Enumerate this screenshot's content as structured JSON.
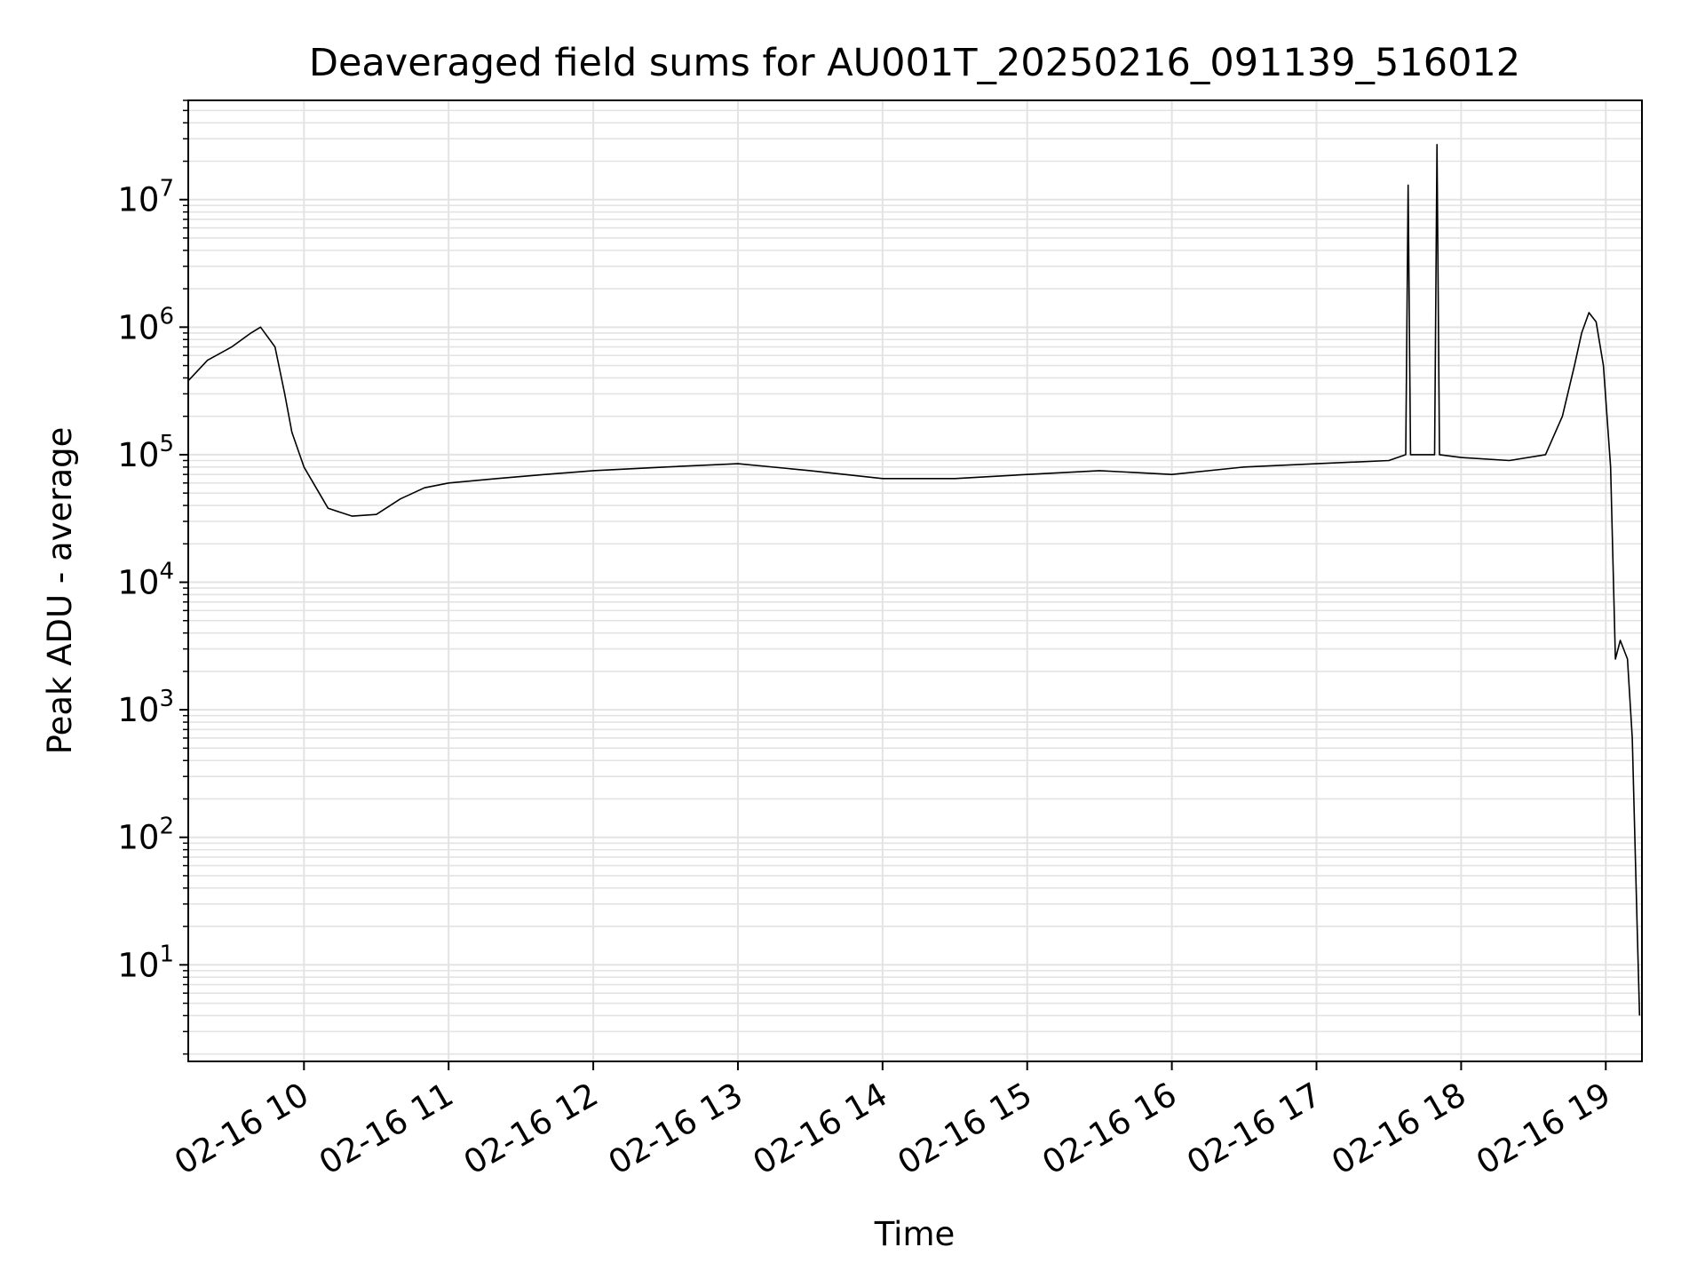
{
  "chart_data": {
    "type": "line",
    "title": "Deaveraged field sums for AU001T_20250216_091139_516012",
    "xlabel": "Time",
    "ylabel": "Peak ADU - average",
    "yscale": "log",
    "ylim": [
      1.75,
      60000000
    ],
    "xlim": [
      "2025-02-16 09:12",
      "2025-02-16 19:15"
    ],
    "grid": true,
    "line_color": "#000000",
    "grid_color": "#e3e3e3",
    "x_ticks": [
      {
        "label": "02-16 10",
        "value": "2025-02-16 10:00"
      },
      {
        "label": "02-16 11",
        "value": "2025-02-16 11:00"
      },
      {
        "label": "02-16 12",
        "value": "2025-02-16 12:00"
      },
      {
        "label": "02-16 13",
        "value": "2025-02-16 13:00"
      },
      {
        "label": "02-16 14",
        "value": "2025-02-16 14:00"
      },
      {
        "label": "02-16 15",
        "value": "2025-02-16 15:00"
      },
      {
        "label": "02-16 16",
        "value": "2025-02-16 16:00"
      },
      {
        "label": "02-16 17",
        "value": "2025-02-16 17:00"
      },
      {
        "label": "02-16 18",
        "value": "2025-02-16 18:00"
      },
      {
        "label": "02-16 19",
        "value": "2025-02-16 19:00"
      }
    ],
    "y_ticks": [
      {
        "base": "10",
        "exp": "1",
        "value": 10
      },
      {
        "base": "10",
        "exp": "2",
        "value": 100
      },
      {
        "base": "10",
        "exp": "3",
        "value": 1000
      },
      {
        "base": "10",
        "exp": "4",
        "value": 10000
      },
      {
        "base": "10",
        "exp": "5",
        "value": 100000
      },
      {
        "base": "10",
        "exp": "6",
        "value": 1000000
      },
      {
        "base": "10",
        "exp": "7",
        "value": 10000000
      }
    ],
    "series": [
      {
        "x": [
          "2025-02-16 09:12",
          "2025-02-16 09:20",
          "2025-02-16 09:30",
          "2025-02-16 09:38",
          "2025-02-16 09:42",
          "2025-02-16 09:48",
          "2025-02-16 09:52",
          "2025-02-16 09:55",
          "2025-02-16 10:00",
          "2025-02-16 10:10",
          "2025-02-16 10:20",
          "2025-02-16 10:30",
          "2025-02-16 10:40",
          "2025-02-16 10:50",
          "2025-02-16 11:00",
          "2025-02-16 11:20",
          "2025-02-16 11:40",
          "2025-02-16 12:00",
          "2025-02-16 12:30",
          "2025-02-16 13:00",
          "2025-02-16 13:30",
          "2025-02-16 14:00",
          "2025-02-16 14:30",
          "2025-02-16 15:00",
          "2025-02-16 15:30",
          "2025-02-16 16:00",
          "2025-02-16 16:30",
          "2025-02-16 17:00",
          "2025-02-16 17:30",
          "2025-02-16 17:37",
          "2025-02-16 17:38",
          "2025-02-16 17:39",
          "2025-02-16 17:49",
          "2025-02-16 17:50",
          "2025-02-16 17:51",
          "2025-02-16 18:00",
          "2025-02-16 18:20",
          "2025-02-16 18:35",
          "2025-02-16 18:42",
          "2025-02-16 18:47",
          "2025-02-16 18:50",
          "2025-02-16 18:53",
          "2025-02-16 18:56",
          "2025-02-16 18:59",
          "2025-02-16 19:02",
          "2025-02-16 19:04",
          "2025-02-16 19:06",
          "2025-02-16 19:09",
          "2025-02-16 19:11",
          "2025-02-16 19:13",
          "2025-02-16 19:14"
        ],
        "y": [
          380000,
          550000,
          700000,
          900000,
          1000000,
          700000,
          300000,
          150000,
          80000,
          38000,
          33000,
          34000,
          45000,
          55000,
          60000,
          65000,
          70000,
          75000,
          80000,
          85000,
          75000,
          65000,
          65000,
          70000,
          75000,
          70000,
          80000,
          85000,
          90000,
          100000,
          13000000,
          100000,
          100000,
          27000000,
          100000,
          95000,
          90000,
          100000,
          200000,
          500000,
          900000,
          1300000,
          1100000,
          500000,
          80000,
          2500,
          3500,
          2500,
          600,
          20,
          4
        ]
      }
    ]
  }
}
